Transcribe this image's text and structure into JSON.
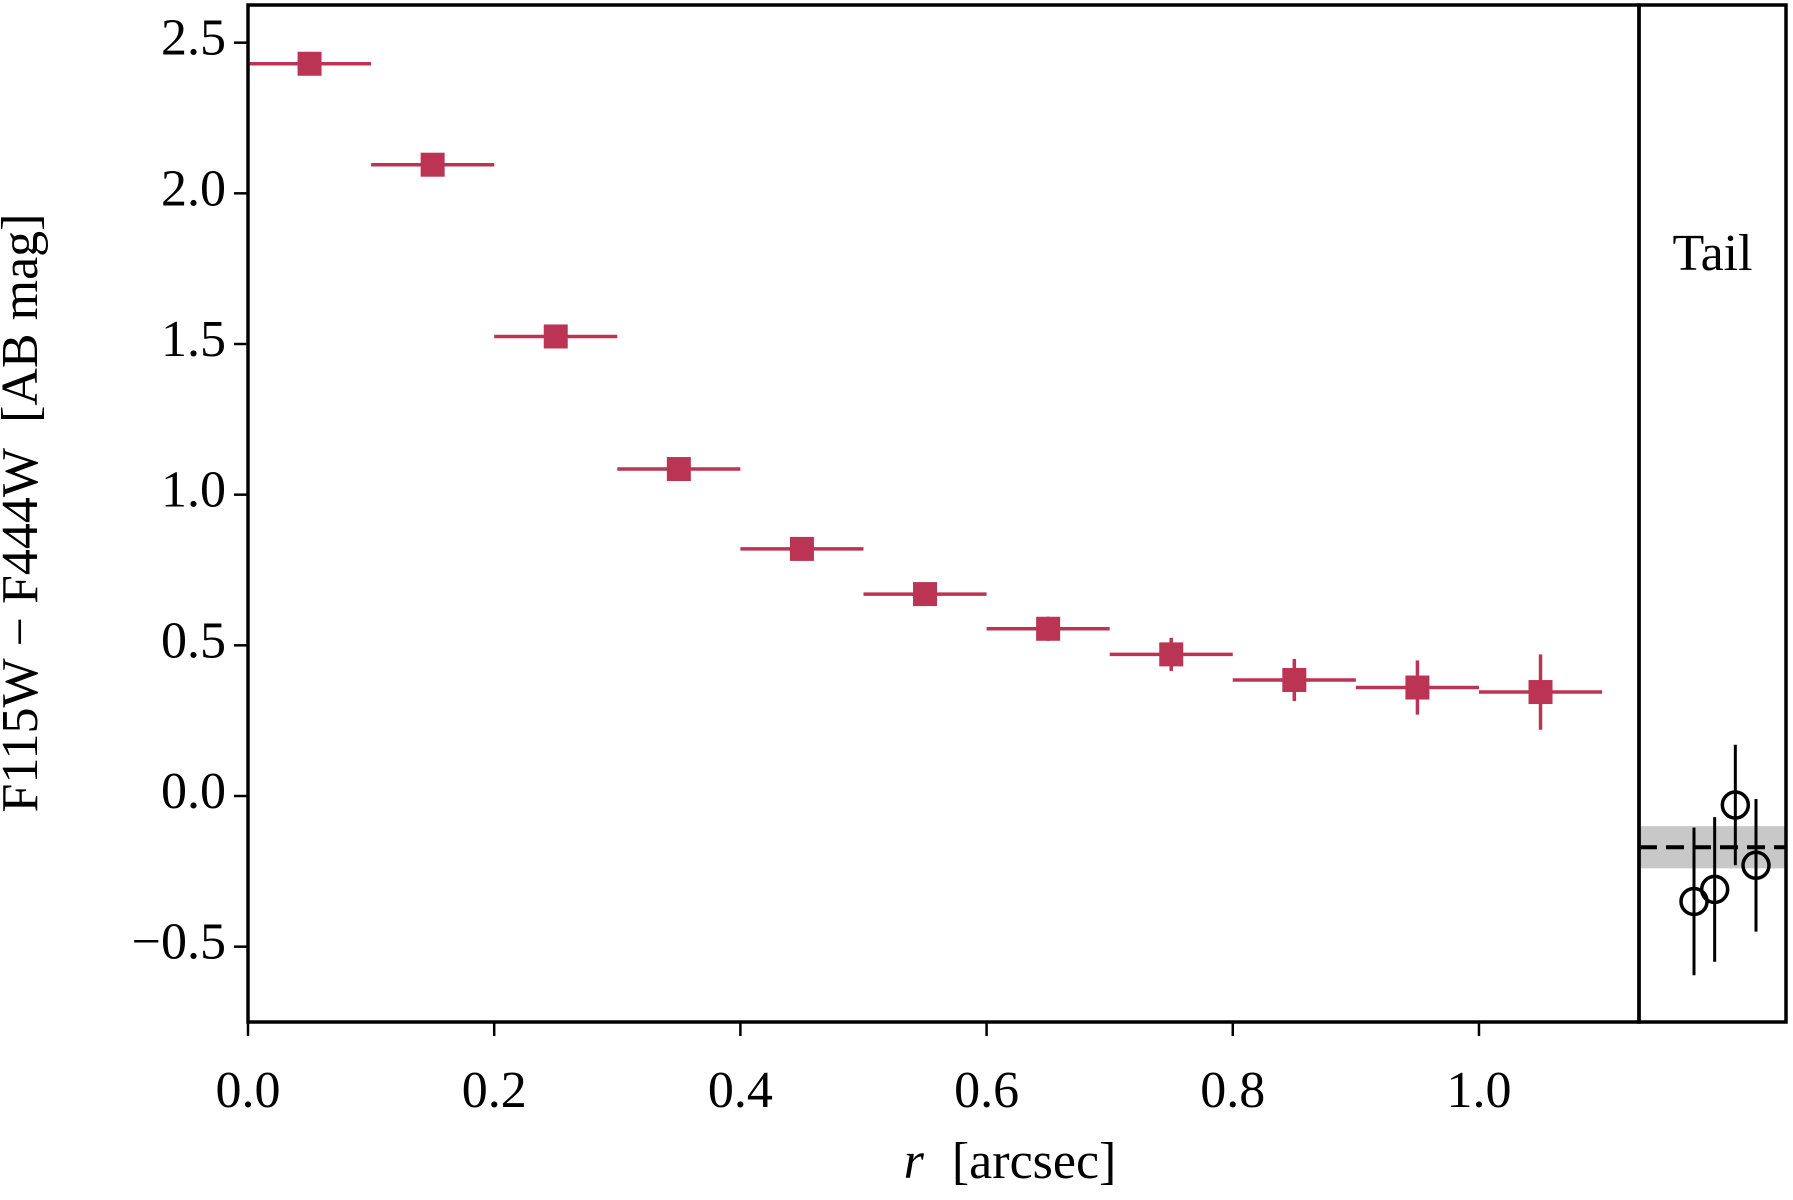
{
  "chart_data": {
    "type": "errorbar",
    "xlabel": {
      "symbol": "r",
      "unit": "[arcsec]"
    },
    "ylabel": "F115W − F444W  [AB mag]",
    "xlim": [
      0,
      1.13
    ],
    "ylim": [
      -0.75,
      2.625
    ],
    "xticks": [
      {
        "value": 0,
        "label": "0.0"
      },
      0.2,
      0.4,
      0.6,
      0.8,
      {
        "value": 1,
        "label": "1.0"
      }
    ],
    "yticks": [
      {
        "value": -0.5,
        "label": "−0.5"
      },
      {
        "value": 0,
        "label": "0.0"
      },
      0.5,
      {
        "value": 1,
        "label": "1.0"
      },
      1.5,
      {
        "value": 2,
        "label": "2.0"
      },
      2.5
    ],
    "series": [
      {
        "color": "#bb3454",
        "x": [
          0.05,
          0.15,
          0.25,
          0.35,
          0.45,
          0.55,
          0.65,
          0.75,
          0.85,
          0.95,
          1.05
        ],
        "xerr": [
          0.05,
          0.05,
          0.05,
          0.05,
          0.05,
          0.05,
          0.05,
          0.05,
          0.05,
          0.05,
          0.05
        ],
        "values": [
          2.43,
          2.095,
          1.525,
          1.085,
          0.82,
          0.67,
          0.555,
          0.47,
          0.385,
          0.36,
          0.345
        ],
        "yerr": [
          0.02,
          0.02,
          0.02,
          0.02,
          0.025,
          0.03,
          0.04,
          0.055,
          0.07,
          0.09,
          0.125
        ]
      }
    ],
    "tail": {
      "label": "Tail",
      "color": "#000000",
      "values": [
        -0.35,
        -0.31,
        -0.03,
        -0.23
      ],
      "yerr": [
        0.245,
        0.24,
        0.2,
        0.22
      ],
      "median": -0.17,
      "median_err": 0.07
    }
  }
}
